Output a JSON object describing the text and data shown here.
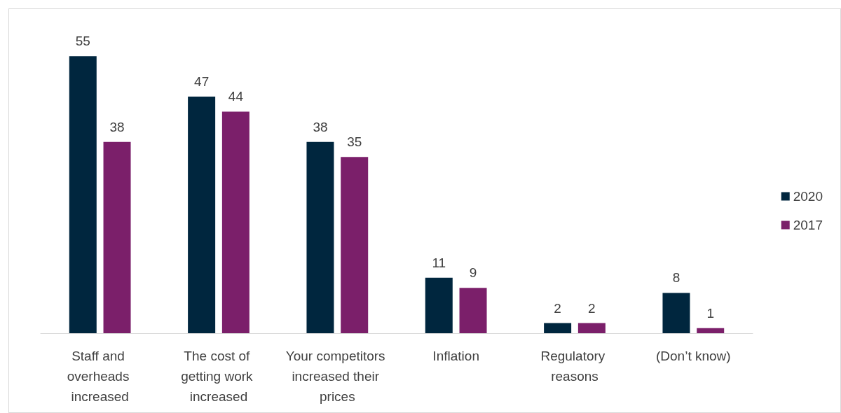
{
  "chart_data": {
    "type": "bar",
    "categories": [
      "Staff and overheads increased",
      "The cost of getting work increased",
      "Your competitors increased their prices",
      "Inflation",
      "Regulatory reasons",
      "(Don’t know)"
    ],
    "series": [
      {
        "name": "2020",
        "color": "#00263e",
        "values": [
          55,
          47,
          38,
          11,
          2,
          8
        ]
      },
      {
        "name": "2017",
        "color": "#7b1f6a",
        "values": [
          38,
          44,
          35,
          9,
          2,
          1
        ]
      }
    ],
    "data_labels": true,
    "legend": "right"
  }
}
